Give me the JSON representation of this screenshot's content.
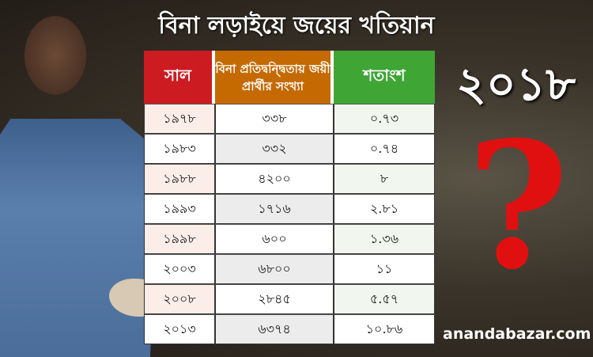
{
  "title": "বিনা লড়াইয়ে জয়ের খতিয়ান",
  "year_highlight": "২০১৮",
  "question_mark": "?",
  "brand": "anandabazar.com",
  "colors": {
    "year_header": "#cc1c22",
    "count_header": "#c46a00",
    "percent_header": "#3fa535"
  },
  "chart_data": {
    "type": "table",
    "columns": [
      "সাল",
      "বিনা প্রতিদ্বন্দ্বিতায় জয়ী প্রার্থীর সংখ্যা",
      "শতাংশ"
    ],
    "rows": [
      [
        "১৯৭৮",
        "৩৩৮",
        "০.৭৩"
      ],
      [
        "১৯৮৩",
        "৩৩২",
        "০.৭৪"
      ],
      [
        "১৯৮৮",
        "৪২০০",
        "৮"
      ],
      [
        "১৯৯৩",
        "১৭১৬",
        "২.৮১"
      ],
      [
        "১৯৯৮",
        "৬০০",
        "১.৩৬"
      ],
      [
        "২০০৩",
        "৬৮০০",
        "১১"
      ],
      [
        "২০০৮",
        "২৮৪৫",
        "৫.৫৭"
      ],
      [
        "২০১৩",
        "৬৩৭৪",
        "১০.৮৬"
      ]
    ]
  }
}
